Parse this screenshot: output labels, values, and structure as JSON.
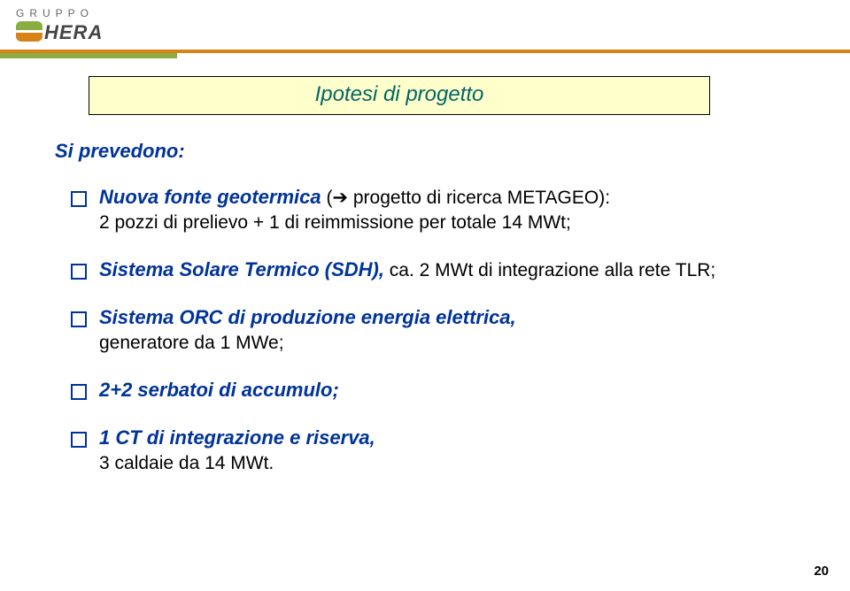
{
  "logo": {
    "top": "GRUPPO",
    "name": "HERA"
  },
  "colors": {
    "header_orange": "#d98218",
    "header_green": "#8aad42",
    "title_bg": "#ffffcc",
    "title_border": "#000000",
    "title_text": "#006666",
    "bullet_blue": "#003399",
    "body_black": "#000000",
    "logo_grey": "#666666"
  },
  "title": "Ipotesi di progetto",
  "intro": "Si prevedono:",
  "bullets": [
    {
      "head": "Nuova fonte geotermica",
      "tail": "      (➔ progetto di ricerca METAGEO):",
      "sub": "2 pozzi di prelievo + 1 di reimmissione per totale 14 MWt;"
    },
    {
      "head": "Sistema Solare Termico (SDH),",
      "tail": " ca. 2 MWt di integrazione alla rete TLR;",
      "sub": ""
    },
    {
      "head": "Sistema ORC di produzione energia elettrica,",
      "tail": "",
      "sub": "generatore da 1 MWe;"
    },
    {
      "head": "2+2 serbatoi di accumulo;",
      "tail": "",
      "sub": ""
    },
    {
      "head": "1 CT di integrazione e riserva,",
      "tail": "",
      "sub": "3 caldaie da 14 MWt."
    }
  ],
  "page_number": "20"
}
